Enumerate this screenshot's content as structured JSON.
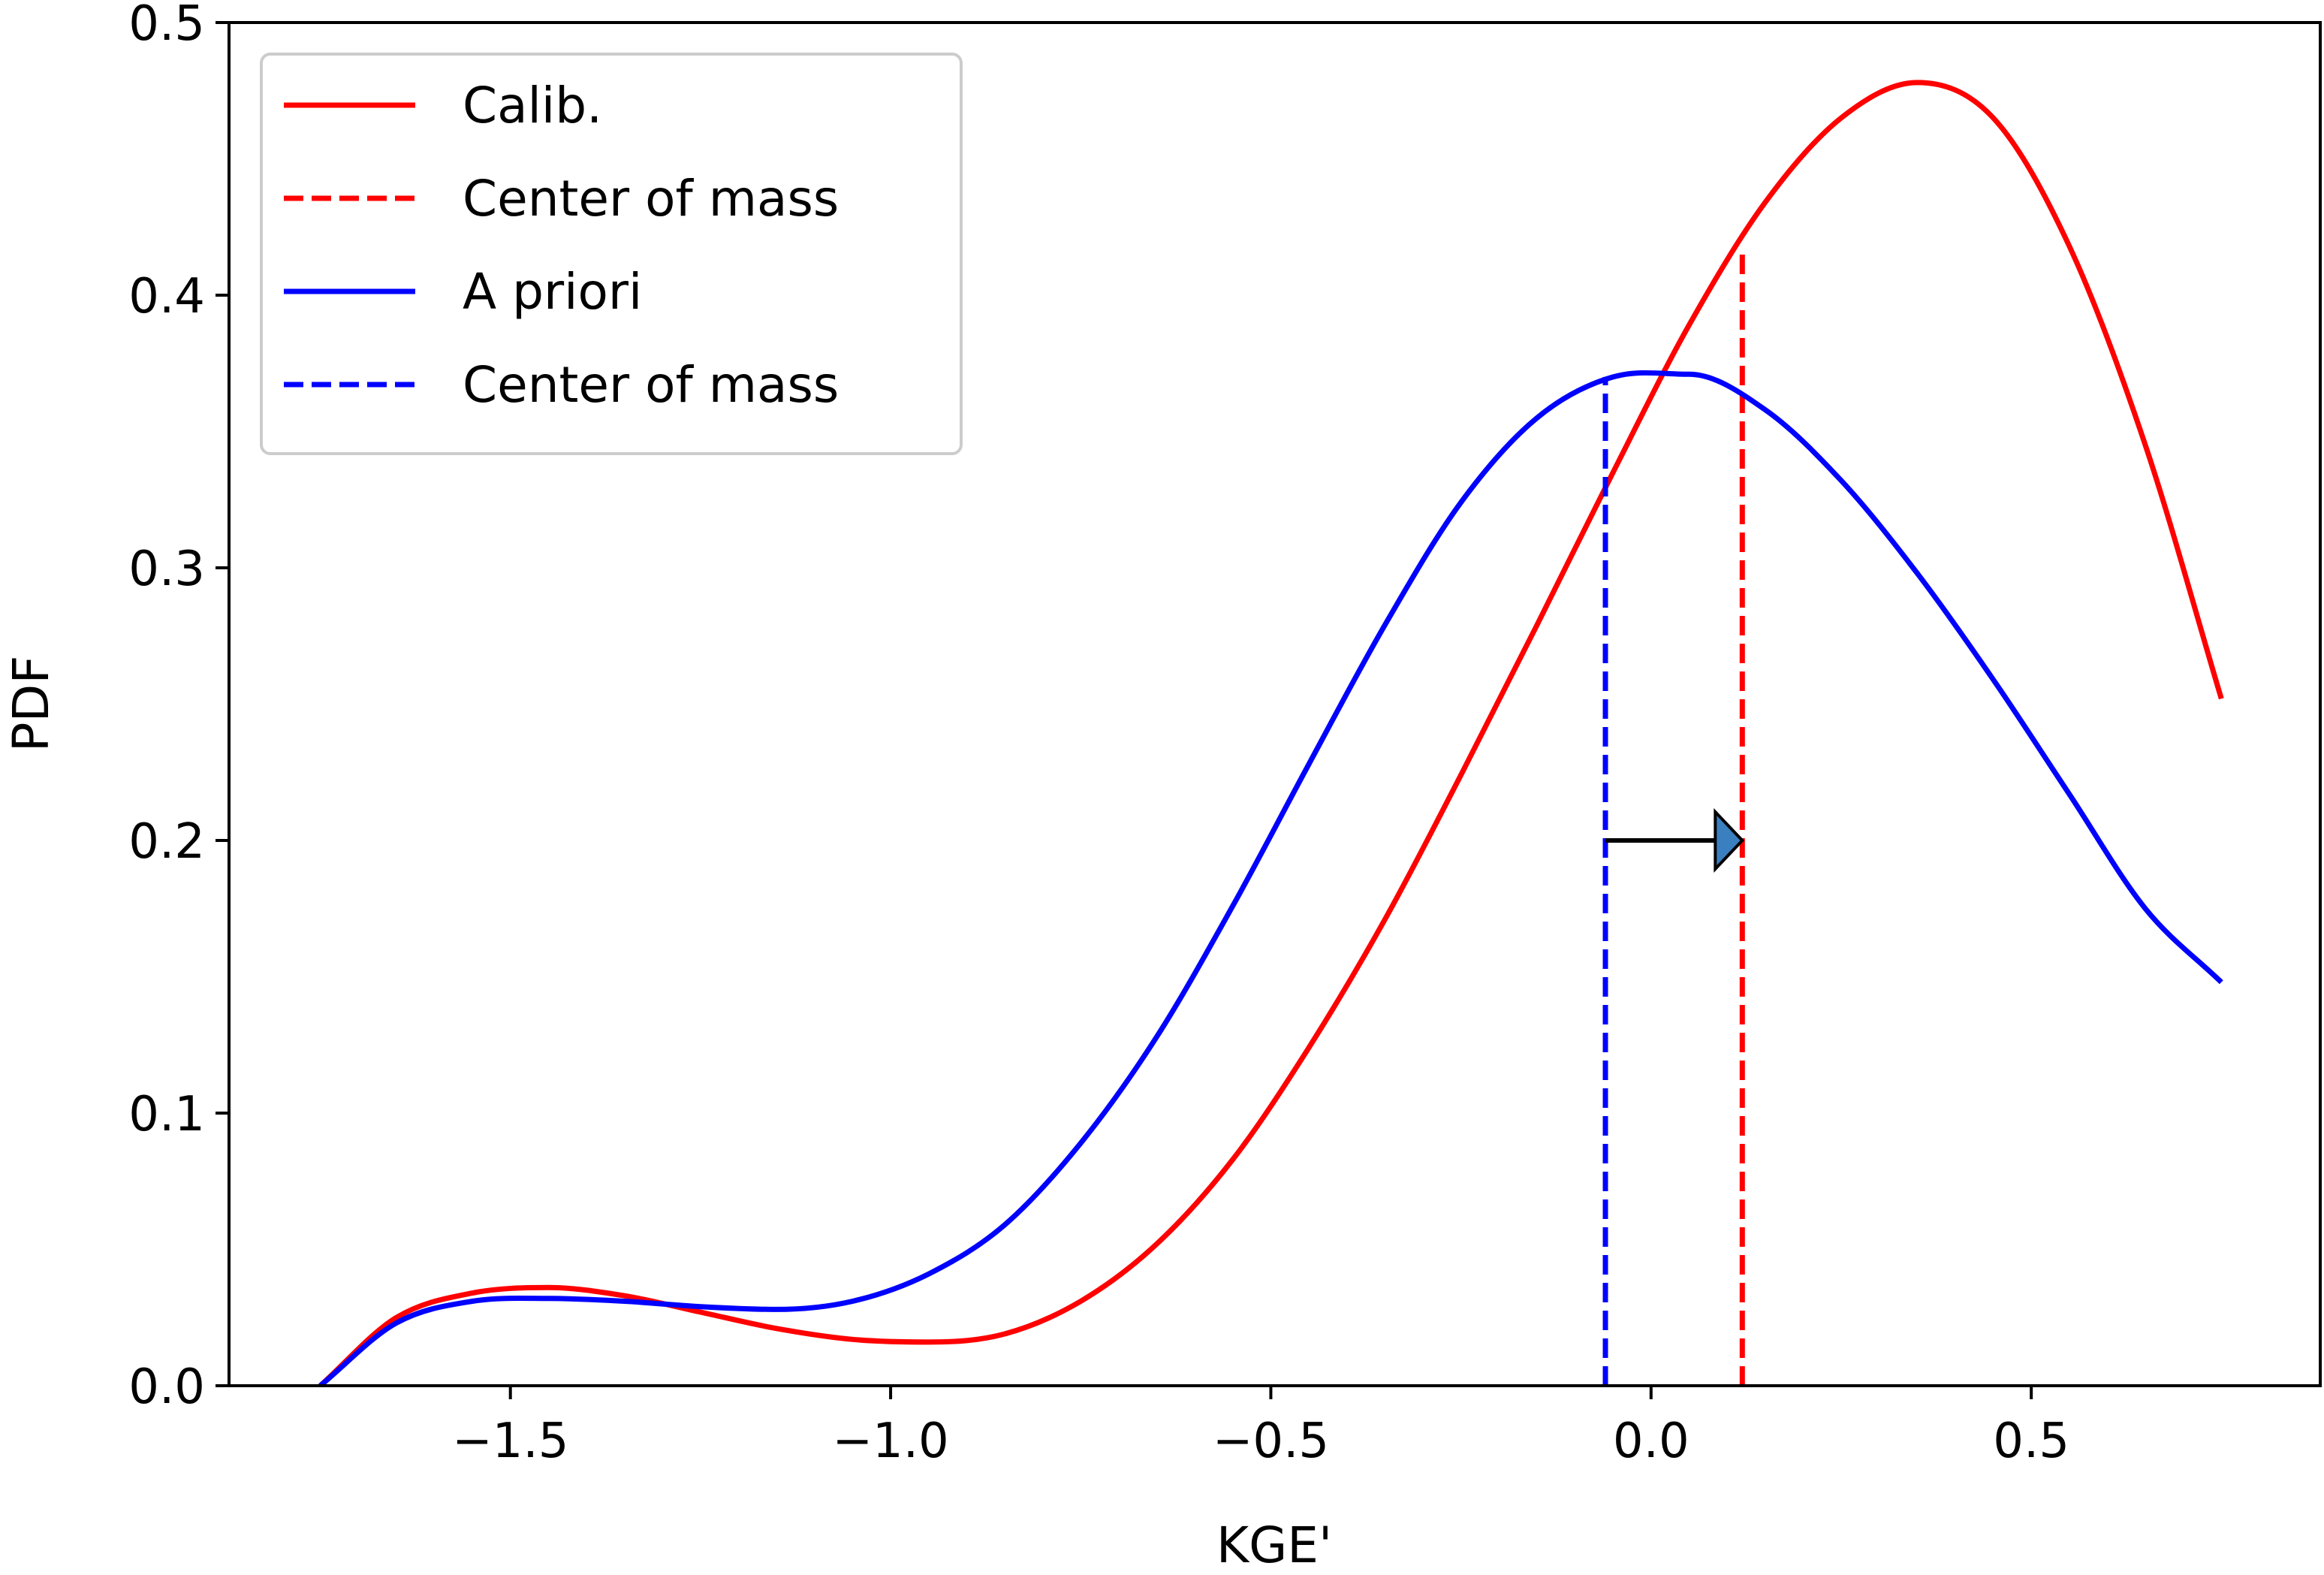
{
  "chart_data": {
    "type": "line",
    "xlabel": "KGE'",
    "ylabel": "PDF",
    "xlim": [
      -1.87,
      0.88
    ],
    "ylim": [
      0,
      0.5
    ],
    "x_ticks": [
      {
        "value": -1.5,
        "label": "−1.5"
      },
      {
        "value": -1.0,
        "label": "−1.0"
      },
      {
        "value": -0.5,
        "label": "−0.5"
      },
      {
        "value": 0.0,
        "label": "0.0"
      },
      {
        "value": 0.5,
        "label": "0.5"
      }
    ],
    "y_ticks": [
      {
        "value": 0.0,
        "label": "0.0"
      },
      {
        "value": 0.1,
        "label": "0.1"
      },
      {
        "value": 0.2,
        "label": "0.2"
      },
      {
        "value": 0.3,
        "label": "0.3"
      },
      {
        "value": 0.4,
        "label": "0.4"
      },
      {
        "value": 0.5,
        "label": "0.5"
      }
    ],
    "grid": false,
    "legend_position": "top-left",
    "series": [
      {
        "name": "Calib.",
        "style": "solid",
        "color": "#ff0000",
        "x": [
          -1.75,
          -1.65,
          -1.55,
          -1.45,
          -1.35,
          -1.25,
          -1.15,
          -1.05,
          -0.95,
          -0.85,
          -0.75,
          -0.65,
          -0.55,
          -0.45,
          -0.35,
          -0.25,
          -0.15,
          -0.05,
          0.05,
          0.15,
          0.25,
          0.35,
          0.45,
          0.55,
          0.65,
          0.75
        ],
        "y": [
          0.0,
          0.025,
          0.034,
          0.036,
          0.033,
          0.027,
          0.021,
          0.017,
          0.016,
          0.019,
          0.031,
          0.052,
          0.083,
          0.124,
          0.171,
          0.224,
          0.279,
          0.335,
          0.389,
          0.434,
          0.465,
          0.478,
          0.465,
          0.418,
          0.345,
          0.252
        ]
      },
      {
        "name": "Center of mass",
        "style": "dashed",
        "color": "#ff0000",
        "x": [
          0.12,
          0.12
        ],
        "y": [
          0.0,
          0.415
        ]
      },
      {
        "name": "A priori",
        "style": "solid",
        "color": "#0000ff",
        "x": [
          -1.75,
          -1.65,
          -1.55,
          -1.45,
          -1.35,
          -1.25,
          -1.15,
          -1.05,
          -0.95,
          -0.85,
          -0.75,
          -0.65,
          -0.55,
          -0.45,
          -0.35,
          -0.25,
          -0.15,
          -0.05,
          0.05,
          0.15,
          0.25,
          0.35,
          0.45,
          0.55,
          0.65,
          0.75
        ],
        "y": [
          0.0,
          0.023,
          0.031,
          0.032,
          0.031,
          0.029,
          0.028,
          0.031,
          0.041,
          0.059,
          0.089,
          0.128,
          0.176,
          0.228,
          0.279,
          0.324,
          0.355,
          0.37,
          0.371,
          0.358,
          0.332,
          0.298,
          0.259,
          0.217,
          0.175,
          0.148
        ]
      },
      {
        "name": "Center of mass",
        "style": "dashed",
        "color": "#0000ff",
        "x": [
          -0.06,
          -0.06
        ],
        "y": [
          0.0,
          0.37
        ]
      }
    ],
    "annotation": {
      "type": "arrow",
      "x_start": -0.06,
      "x_end": 0.12,
      "y": 0.2,
      "color": "#000000",
      "head_color": "#3a7fbf"
    }
  }
}
